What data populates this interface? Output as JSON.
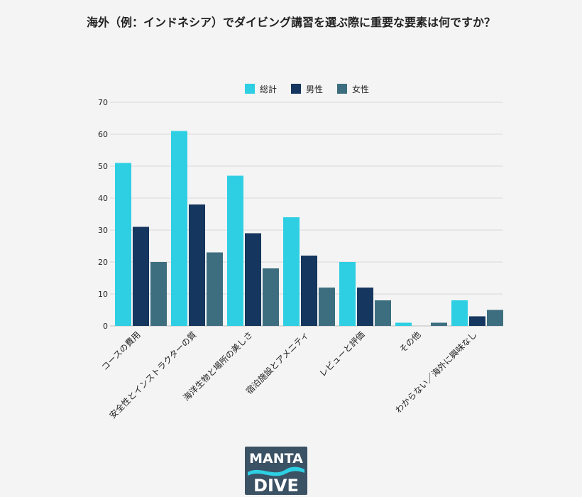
{
  "title": "海外（例：インドネシア）でダイビング講習を選ぶ際に重要な要素は何ですか？",
  "logo": {
    "line1": "MANTA",
    "line2": "DIVE"
  },
  "colors": {
    "total": "#2ecfe3",
    "male": "#15365e",
    "female": "#3d6e80",
    "grid": "#d9d9d9",
    "text": "#222222"
  },
  "chart_data": {
    "type": "bar",
    "title": "海外（例：インドネシア）でダイビング講習を選ぶ際に重要な要素は何ですか？",
    "xlabel": "",
    "ylabel": "",
    "ylim": [
      0,
      70
    ],
    "yticks": [
      0,
      10,
      20,
      30,
      40,
      50,
      60,
      70
    ],
    "grid": true,
    "legend_position": "top-center",
    "categories": [
      "コースの費用",
      "安全性とインストラクターの質",
      "海洋生物と場所の美しさ",
      "宿泊施設とアメニティ",
      "レビューと評価",
      "その他",
      "わからない／海外に興味なし"
    ],
    "series": [
      {
        "name": "総計",
        "values": [
          51,
          61,
          47,
          34,
          20,
          1,
          8
        ]
      },
      {
        "name": "男性",
        "values": [
          31,
          38,
          29,
          22,
          12,
          0,
          3
        ]
      },
      {
        "name": "女性",
        "values": [
          20,
          23,
          18,
          12,
          8,
          1,
          5
        ]
      }
    ]
  }
}
